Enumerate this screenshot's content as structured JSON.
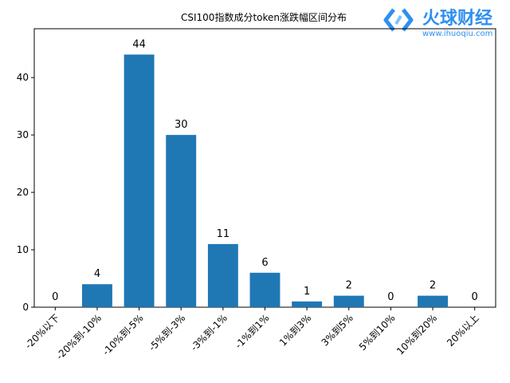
{
  "watermark": {
    "brand_text": "火球财经",
    "url_text": "www.ihuoqiu.com",
    "color": "#2e8ff0"
  },
  "chart_data": {
    "type": "bar",
    "title": "CSI100指数成分token涨跌幅区间分布",
    "xlabel": "",
    "ylabel": "",
    "categories": [
      "-20%以下",
      "-20%到-10%",
      "-10%到-5%",
      "-5%到-3%",
      "-3%到-1%",
      "-1%到1%",
      "1%到3%",
      "3%到5%",
      "5%到10%",
      "10%到20%",
      "20%以上"
    ],
    "values": [
      0,
      4,
      44,
      30,
      11,
      6,
      1,
      2,
      0,
      2,
      0
    ],
    "ylim": [
      0,
      48.5
    ],
    "yticks": [
      0,
      10,
      20,
      30,
      40
    ],
    "bar_color": "#1f77b4",
    "grid": false,
    "legend": "none"
  }
}
